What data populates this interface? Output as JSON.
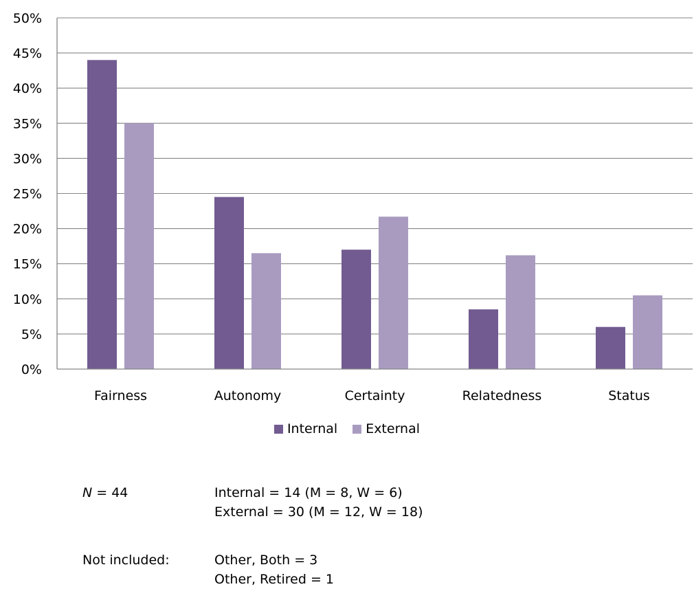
{
  "chart_data": {
    "type": "bar",
    "categories": [
      "Fairness",
      "Autonomy",
      "Certainty",
      "Relatedness",
      "Status"
    ],
    "series": [
      {
        "name": "Internal",
        "values": [
          44,
          24.5,
          17,
          8.5,
          6
        ],
        "color": "#725b91"
      },
      {
        "name": "External",
        "values": [
          35,
          16.5,
          21.7,
          16.2,
          10.5
        ],
        "color": "#a99bc0"
      }
    ],
    "y_ticks": [
      "0%",
      "5%",
      "10%",
      "15%",
      "20%",
      "25%",
      "30%",
      "35%",
      "40%",
      "45%",
      "50%"
    ],
    "ylim": [
      0,
      50
    ],
    "grid": true,
    "legend": "bottom"
  },
  "notes": {
    "n_label": "N",
    "n_value": " = 44",
    "n_lines": [
      "Internal = 14 (M = 8, W = 6)",
      "External = 30 (M = 12, W = 18)"
    ],
    "not_included_label": "Not included:",
    "not_included_lines": [
      "Other, Both = 3",
      "Other, Retired = 1"
    ]
  }
}
